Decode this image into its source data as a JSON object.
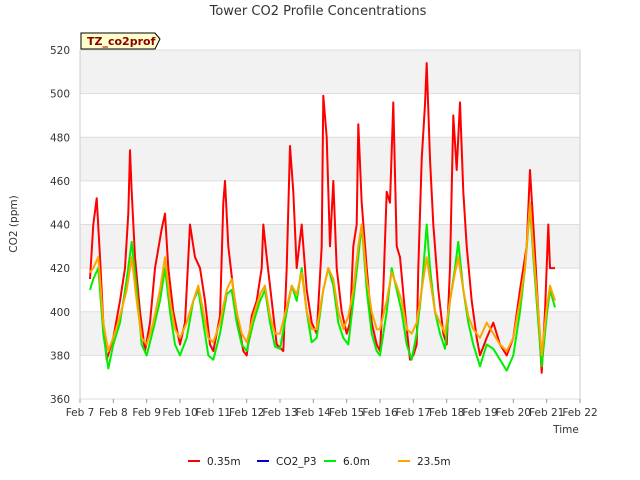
{
  "chart_data": {
    "type": "line",
    "title": "Tower CO2 Profile Concentrations",
    "xlabel": "Time",
    "ylabel": "CO2 (ppm)",
    "tag": "TZ_co2prof",
    "ylim": [
      360,
      520
    ],
    "yticks": [
      360,
      380,
      400,
      420,
      440,
      460,
      480,
      500,
      520
    ],
    "xlim": [
      7,
      22
    ],
    "xticks": [
      7,
      8,
      9,
      10,
      11,
      12,
      13,
      14,
      15,
      16,
      17,
      18,
      19,
      20,
      21,
      22
    ],
    "xtick_labels": [
      "Feb 7",
      "Feb 8",
      "Feb 9",
      "Feb 10",
      "Feb 11",
      "Feb 12",
      "Feb 13",
      "Feb 14",
      "Feb 15",
      "Feb 16",
      "Feb 17",
      "Feb 18",
      "Feb 19",
      "Feb 20",
      "Feb 21",
      "Feb 22"
    ],
    "grid": true,
    "legend_position": "bottom",
    "series": [
      {
        "name": "0.35m",
        "color": "#ff0000",
        "points": [
          [
            7.3,
            415
          ],
          [
            7.4,
            440
          ],
          [
            7.5,
            452
          ],
          [
            7.6,
            425
          ],
          [
            7.7,
            395
          ],
          [
            7.8,
            378
          ],
          [
            8.0,
            388
          ],
          [
            8.2,
            405
          ],
          [
            8.35,
            420
          ],
          [
            8.45,
            445
          ],
          [
            8.5,
            474
          ],
          [
            8.55,
            455
          ],
          [
            8.65,
            425
          ],
          [
            8.8,
            400
          ],
          [
            8.95,
            382
          ],
          [
            9.1,
            395
          ],
          [
            9.25,
            420
          ],
          [
            9.45,
            438
          ],
          [
            9.55,
            445
          ],
          [
            9.65,
            420
          ],
          [
            9.8,
            400
          ],
          [
            10.0,
            385
          ],
          [
            10.15,
            395
          ],
          [
            10.3,
            440
          ],
          [
            10.45,
            425
          ],
          [
            10.6,
            420
          ],
          [
            10.75,
            405
          ],
          [
            10.9,
            385
          ],
          [
            11.0,
            382
          ],
          [
            11.2,
            398
          ],
          [
            11.3,
            450
          ],
          [
            11.35,
            460
          ],
          [
            11.45,
            430
          ],
          [
            11.6,
            410
          ],
          [
            11.75,
            395
          ],
          [
            11.9,
            382
          ],
          [
            12.0,
            380
          ],
          [
            12.15,
            398
          ],
          [
            12.3,
            405
          ],
          [
            12.45,
            420
          ],
          [
            12.5,
            440
          ],
          [
            12.6,
            425
          ],
          [
            12.75,
            405
          ],
          [
            12.9,
            385
          ],
          [
            13.1,
            382
          ],
          [
            13.2,
            420
          ],
          [
            13.3,
            476
          ],
          [
            13.4,
            455
          ],
          [
            13.5,
            420
          ],
          [
            13.65,
            440
          ],
          [
            13.8,
            410
          ],
          [
            13.95,
            395
          ],
          [
            14.1,
            390
          ],
          [
            14.25,
            430
          ],
          [
            14.3,
            499
          ],
          [
            14.4,
            480
          ],
          [
            14.5,
            430
          ],
          [
            14.6,
            460
          ],
          [
            14.7,
            420
          ],
          [
            14.85,
            400
          ],
          [
            15.0,
            390
          ],
          [
            15.1,
            395
          ],
          [
            15.2,
            430
          ],
          [
            15.3,
            440
          ],
          [
            15.35,
            486
          ],
          [
            15.45,
            450
          ],
          [
            15.6,
            420
          ],
          [
            15.75,
            395
          ],
          [
            15.9,
            385
          ],
          [
            16.0,
            382
          ],
          [
            16.1,
            410
          ],
          [
            16.2,
            455
          ],
          [
            16.3,
            450
          ],
          [
            16.4,
            496
          ],
          [
            16.5,
            430
          ],
          [
            16.6,
            425
          ],
          [
            16.75,
            400
          ],
          [
            16.9,
            378
          ],
          [
            17.0,
            380
          ],
          [
            17.1,
            385
          ],
          [
            17.15,
            420
          ],
          [
            17.25,
            470
          ],
          [
            17.35,
            495
          ],
          [
            17.4,
            514
          ],
          [
            17.5,
            470
          ],
          [
            17.6,
            440
          ],
          [
            17.75,
            410
          ],
          [
            17.9,
            390
          ],
          [
            18.0,
            385
          ],
          [
            18.1,
            420
          ],
          [
            18.2,
            490
          ],
          [
            18.3,
            465
          ],
          [
            18.4,
            496
          ],
          [
            18.5,
            455
          ],
          [
            18.6,
            430
          ],
          [
            18.75,
            405
          ],
          [
            18.9,
            388
          ],
          [
            19.0,
            380
          ],
          [
            19.2,
            388
          ],
          [
            19.4,
            395
          ],
          [
            19.6,
            385
          ],
          [
            19.8,
            380
          ],
          [
            20.0,
            388
          ],
          [
            20.2,
            410
          ],
          [
            20.4,
            430
          ],
          [
            20.5,
            465
          ],
          [
            20.6,
            440
          ],
          [
            20.75,
            400
          ],
          [
            20.85,
            372
          ],
          [
            20.95,
            400
          ],
          [
            21.05,
            440
          ],
          [
            21.1,
            420
          ],
          [
            21.25,
            420
          ]
        ]
      },
      {
        "name": "CO2_P3",
        "color": "#0000cc",
        "points": []
      },
      {
        "name": "6.0m",
        "color": "#00ee00",
        "points": [
          [
            7.3,
            410
          ],
          [
            7.4,
            415
          ],
          [
            7.55,
            420
          ],
          [
            7.7,
            390
          ],
          [
            7.85,
            374
          ],
          [
            8.0,
            385
          ],
          [
            8.2,
            395
          ],
          [
            8.4,
            415
          ],
          [
            8.55,
            432
          ],
          [
            8.7,
            410
          ],
          [
            8.85,
            385
          ],
          [
            9.0,
            380
          ],
          [
            9.2,
            392
          ],
          [
            9.4,
            405
          ],
          [
            9.55,
            420
          ],
          [
            9.7,
            400
          ],
          [
            9.85,
            385
          ],
          [
            10.0,
            380
          ],
          [
            10.2,
            388
          ],
          [
            10.4,
            405
          ],
          [
            10.55,
            410
          ],
          [
            10.7,
            395
          ],
          [
            10.85,
            380
          ],
          [
            11.0,
            378
          ],
          [
            11.2,
            390
          ],
          [
            11.4,
            408
          ],
          [
            11.55,
            410
          ],
          [
            11.7,
            395
          ],
          [
            11.85,
            385
          ],
          [
            12.0,
            382
          ],
          [
            12.2,
            395
          ],
          [
            12.4,
            405
          ],
          [
            12.55,
            410
          ],
          [
            12.7,
            395
          ],
          [
            12.85,
            384
          ],
          [
            13.0,
            383
          ],
          [
            13.2,
            400
          ],
          [
            13.35,
            412
          ],
          [
            13.5,
            405
          ],
          [
            13.65,
            420
          ],
          [
            13.8,
            400
          ],
          [
            13.95,
            386
          ],
          [
            14.1,
            388
          ],
          [
            14.3,
            410
          ],
          [
            14.45,
            420
          ],
          [
            14.6,
            412
          ],
          [
            14.75,
            395
          ],
          [
            14.9,
            388
          ],
          [
            15.05,
            385
          ],
          [
            15.2,
            405
          ],
          [
            15.35,
            425
          ],
          [
            15.45,
            440
          ],
          [
            15.6,
            410
          ],
          [
            15.75,
            390
          ],
          [
            15.9,
            382
          ],
          [
            16.0,
            380
          ],
          [
            16.2,
            400
          ],
          [
            16.35,
            420
          ],
          [
            16.5,
            410
          ],
          [
            16.65,
            400
          ],
          [
            16.8,
            385
          ],
          [
            16.95,
            378
          ],
          [
            17.1,
            390
          ],
          [
            17.25,
            410
          ],
          [
            17.4,
            440
          ],
          [
            17.5,
            420
          ],
          [
            17.65,
            400
          ],
          [
            17.8,
            390
          ],
          [
            17.95,
            383
          ],
          [
            18.1,
            405
          ],
          [
            18.25,
            420
          ],
          [
            18.35,
            432
          ],
          [
            18.5,
            410
          ],
          [
            18.65,
            395
          ],
          [
            18.8,
            385
          ],
          [
            19.0,
            375
          ],
          [
            19.2,
            385
          ],
          [
            19.4,
            383
          ],
          [
            19.6,
            378
          ],
          [
            19.8,
            373
          ],
          [
            20.0,
            380
          ],
          [
            20.2,
            400
          ],
          [
            20.35,
            420
          ],
          [
            20.5,
            448
          ],
          [
            20.6,
            425
          ],
          [
            20.75,
            395
          ],
          [
            20.85,
            375
          ],
          [
            21.0,
            398
          ],
          [
            21.1,
            410
          ],
          [
            21.25,
            402
          ]
        ]
      },
      {
        "name": "23.5m",
        "color": "#ffa500",
        "points": [
          [
            7.3,
            418
          ],
          [
            7.4,
            420
          ],
          [
            7.55,
            425
          ],
          [
            7.7,
            395
          ],
          [
            7.85,
            382
          ],
          [
            8.0,
            388
          ],
          [
            8.2,
            398
          ],
          [
            8.4,
            410
          ],
          [
            8.55,
            425
          ],
          [
            8.7,
            405
          ],
          [
            8.85,
            388
          ],
          [
            9.0,
            385
          ],
          [
            9.2,
            395
          ],
          [
            9.4,
            410
          ],
          [
            9.55,
            425
          ],
          [
            9.7,
            405
          ],
          [
            9.85,
            392
          ],
          [
            10.0,
            388
          ],
          [
            10.2,
            395
          ],
          [
            10.4,
            405
          ],
          [
            10.55,
            412
          ],
          [
            10.7,
            400
          ],
          [
            10.85,
            388
          ],
          [
            11.0,
            386
          ],
          [
            11.2,
            395
          ],
          [
            11.4,
            410
          ],
          [
            11.55,
            415
          ],
          [
            11.7,
            400
          ],
          [
            11.85,
            390
          ],
          [
            12.0,
            386
          ],
          [
            12.2,
            398
          ],
          [
            12.4,
            408
          ],
          [
            12.55,
            412
          ],
          [
            12.7,
            398
          ],
          [
            12.85,
            390
          ],
          [
            13.0,
            390
          ],
          [
            13.2,
            402
          ],
          [
            13.35,
            412
          ],
          [
            13.5,
            408
          ],
          [
            13.65,
            418
          ],
          [
            13.8,
            400
          ],
          [
            13.95,
            392
          ],
          [
            14.1,
            392
          ],
          [
            14.3,
            410
          ],
          [
            14.45,
            420
          ],
          [
            14.6,
            415
          ],
          [
            14.75,
            400
          ],
          [
            14.9,
            392
          ],
          [
            15.05,
            398
          ],
          [
            15.2,
            410
          ],
          [
            15.35,
            430
          ],
          [
            15.45,
            440
          ],
          [
            15.6,
            415
          ],
          [
            15.75,
            400
          ],
          [
            15.9,
            392
          ],
          [
            16.0,
            392
          ],
          [
            16.2,
            405
          ],
          [
            16.35,
            418
          ],
          [
            16.5,
            412
          ],
          [
            16.65,
            405
          ],
          [
            16.8,
            392
          ],
          [
            16.95,
            390
          ],
          [
            17.1,
            395
          ],
          [
            17.25,
            410
          ],
          [
            17.4,
            425
          ],
          [
            17.5,
            415
          ],
          [
            17.65,
            400
          ],
          [
            17.8,
            395
          ],
          [
            17.95,
            390
          ],
          [
            18.1,
            405
          ],
          [
            18.25,
            418
          ],
          [
            18.35,
            425
          ],
          [
            18.5,
            410
          ],
          [
            18.65,
            398
          ],
          [
            18.8,
            392
          ],
          [
            19.0,
            388
          ],
          [
            19.2,
            395
          ],
          [
            19.4,
            390
          ],
          [
            19.6,
            385
          ],
          [
            19.8,
            382
          ],
          [
            20.0,
            388
          ],
          [
            20.2,
            405
          ],
          [
            20.35,
            420
          ],
          [
            20.5,
            450
          ],
          [
            20.6,
            428
          ],
          [
            20.75,
            400
          ],
          [
            20.85,
            380
          ],
          [
            21.0,
            402
          ],
          [
            21.1,
            412
          ],
          [
            21.25,
            405
          ]
        ]
      }
    ]
  }
}
